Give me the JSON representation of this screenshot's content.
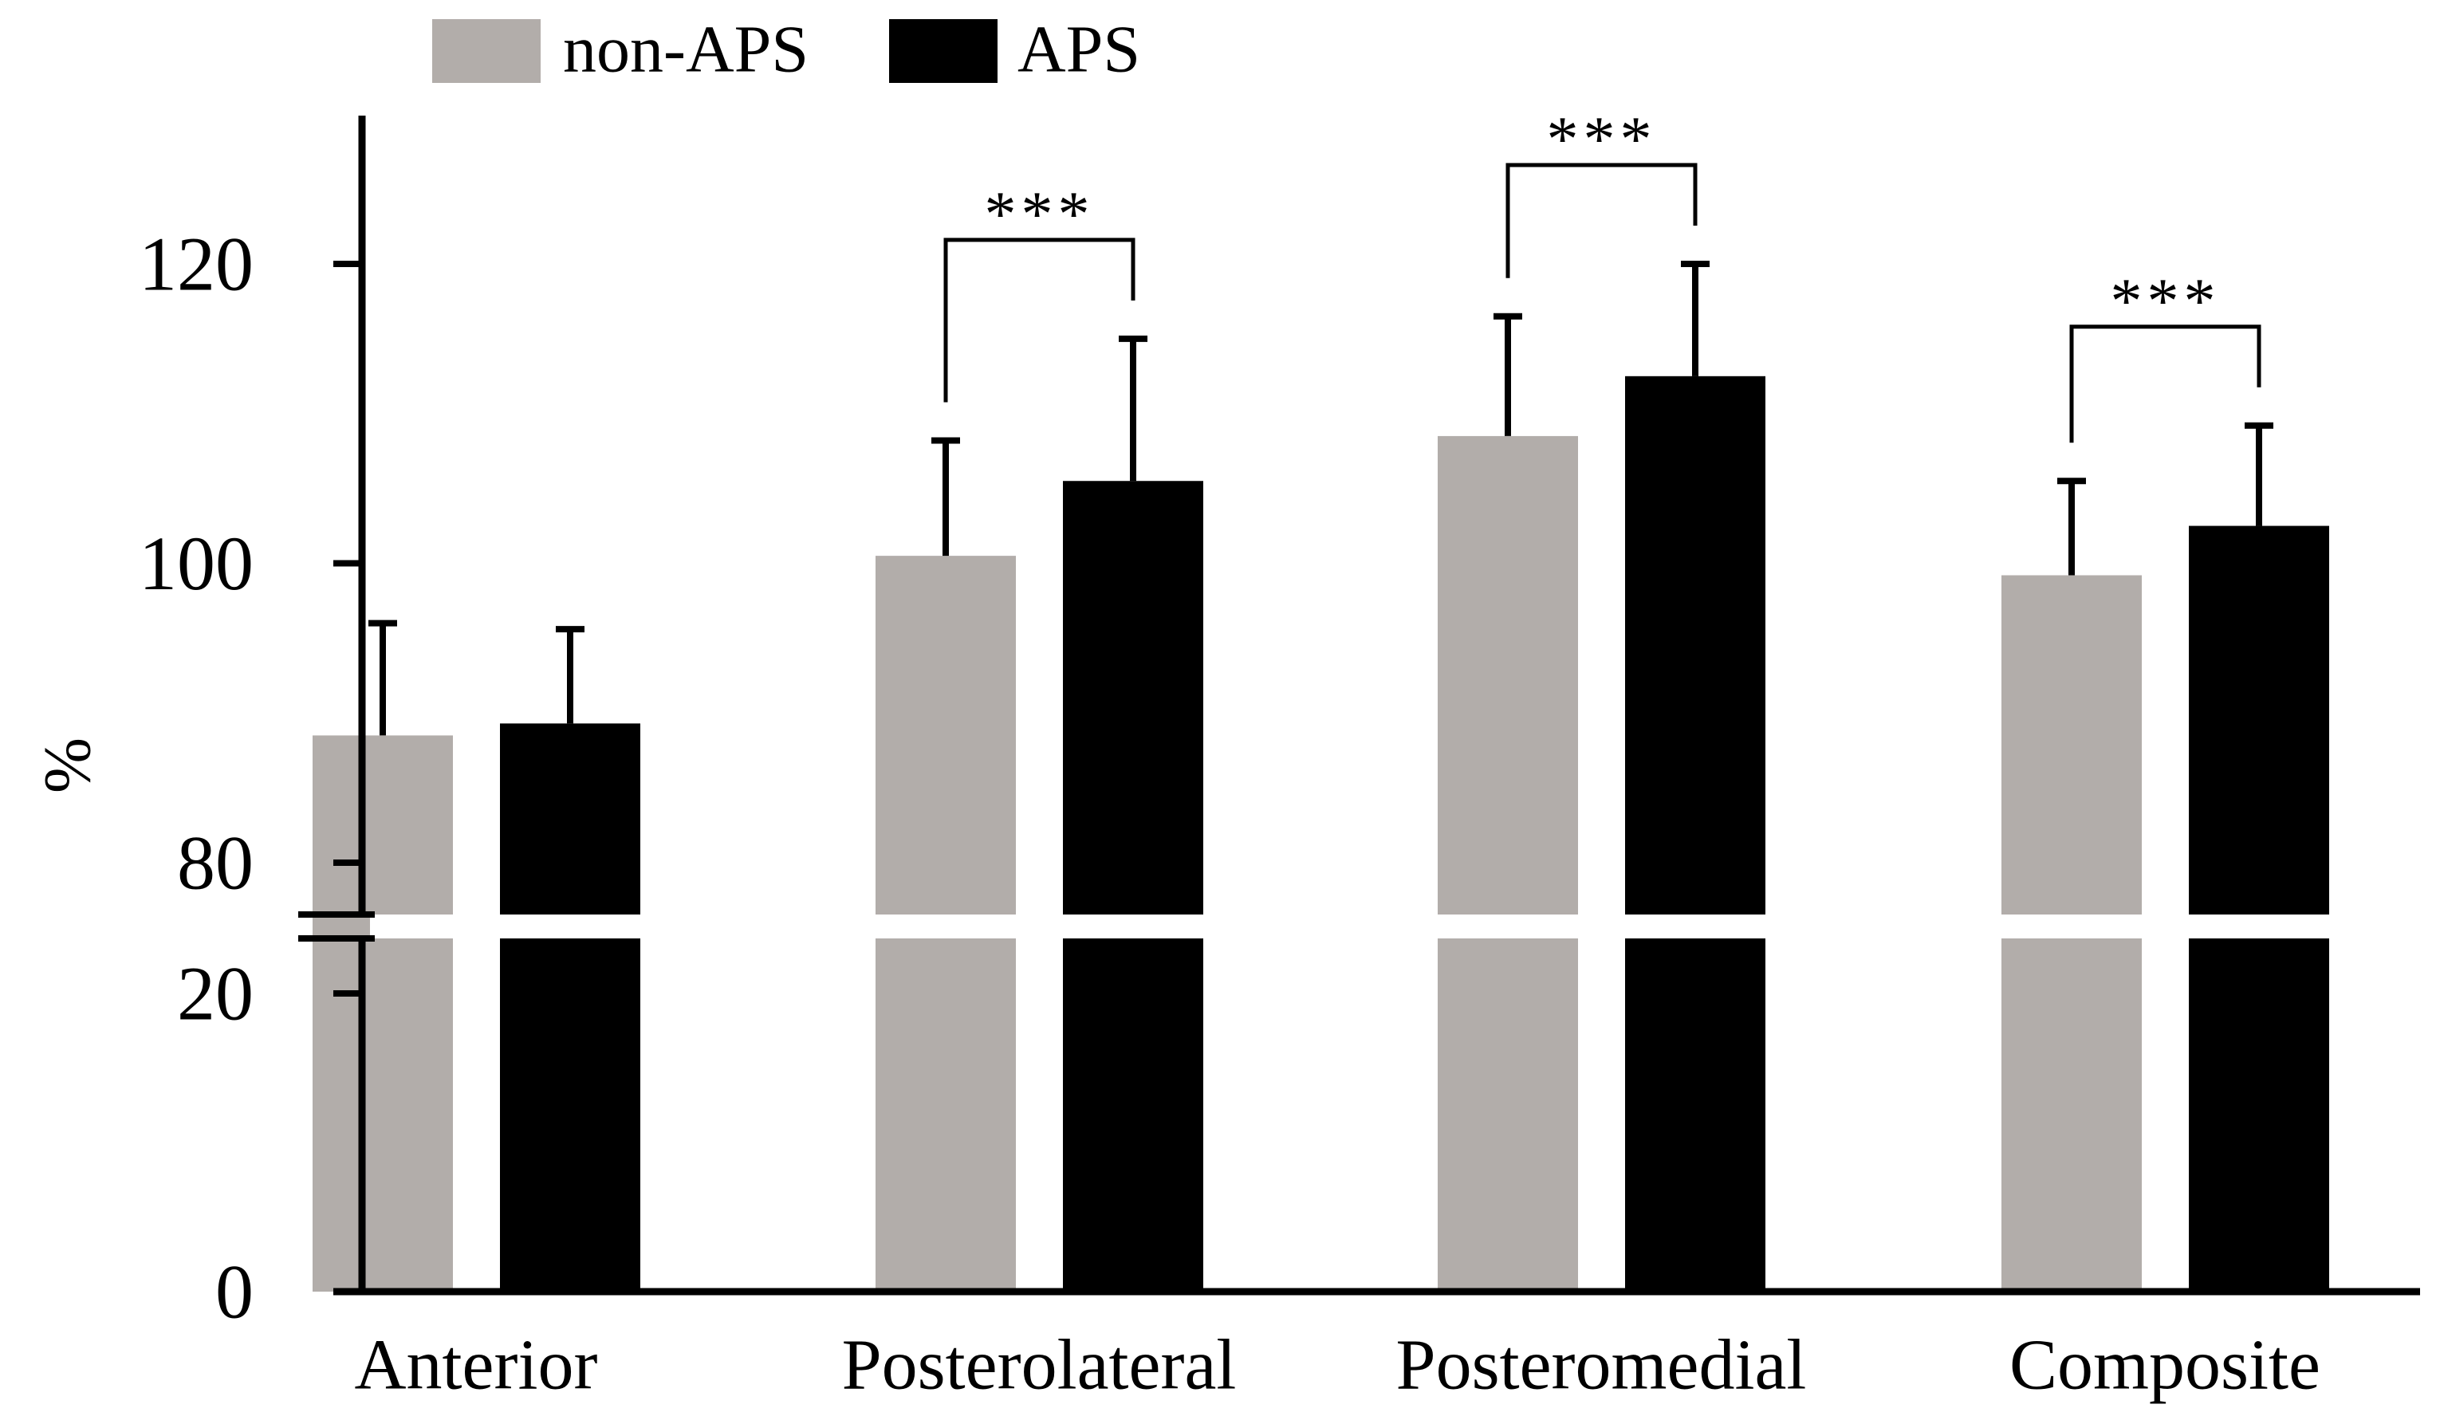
{
  "chart_data": {
    "type": "bar",
    "title": "",
    "xlabel": "",
    "ylabel": "%",
    "categories": [
      "Anterior",
      "Posterolateral",
      "Posteromedial",
      "Composite"
    ],
    "series": [
      {
        "name": "non-APS",
        "color": "#b2adaa",
        "values": [
          88.5,
          100.5,
          108.5,
          99.2
        ],
        "errors": [
          7.5,
          7.7,
          8.0,
          6.3
        ]
      },
      {
        "name": "APS",
        "color": "#000000",
        "values": [
          89.3,
          105.5,
          112.5,
          102.5
        ],
        "errors": [
          6.3,
          9.5,
          7.5,
          6.7
        ]
      }
    ],
    "ylim": [
      0,
      130
    ],
    "axis_break": {
      "from": 22,
      "to": 78
    },
    "yticks": [
      0,
      20,
      80,
      100,
      120
    ],
    "significance": [
      {
        "category": "Posterolateral",
        "label": "***"
      },
      {
        "category": "Posteromedial",
        "label": "***"
      },
      {
        "category": "Composite",
        "label": "***"
      }
    ],
    "legend_position": "top-left",
    "grid": false
  }
}
